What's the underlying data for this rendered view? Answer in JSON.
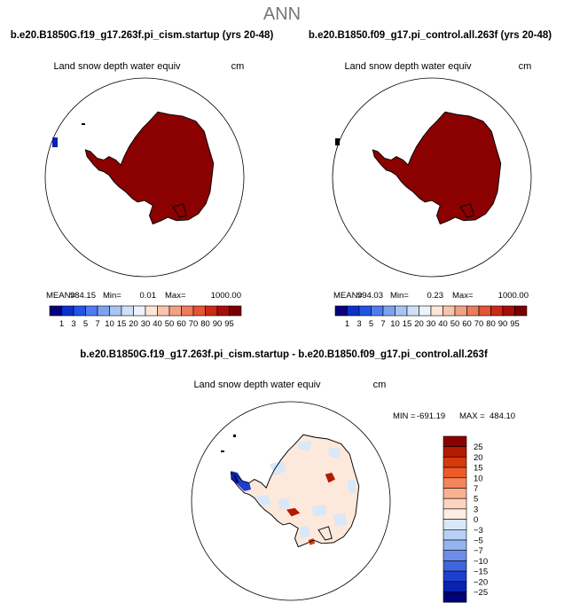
{
  "figure": {
    "title": "ANN"
  },
  "chart_data": [
    {
      "type": "heatmap",
      "id": "panel_case",
      "title": "b.e20.B1850G.f19_g17.263f.pi_cism.startup (yrs 20-48)",
      "variable": "Land snow depth water equiv",
      "units": "cm",
      "stats": {
        "mean_label": "MEAN=",
        "mean": "984.15",
        "min_label": "Min=",
        "min": "0.01",
        "max_label": "Max=",
        "max": "1000.00"
      },
      "colorbar": {
        "orientation": "horizontal",
        "levels": [
          1,
          3,
          5,
          7,
          10,
          15,
          20,
          30,
          40,
          50,
          60,
          70,
          80,
          90,
          95
        ],
        "tick_labels": [
          "1",
          "3",
          "5",
          "7",
          "10",
          "15",
          "20",
          "30",
          "40",
          "50",
          "60",
          "70",
          "80",
          "90",
          "95"
        ],
        "colors": [
          "#08007a",
          "#0a32c8",
          "#2055e6",
          "#4f7cf0",
          "#7ea2f2",
          "#a9c4f4",
          "#cfe0f6",
          "#eef3fb",
          "#fde6d8",
          "#f8c4ac",
          "#f3a183",
          "#ee7b5a",
          "#e55434",
          "#cc2a14",
          "#a50f08",
          "#7a0000"
        ]
      },
      "region": "Antarctica (south polar stereographic)",
      "dominant_value_color": "#8b0000"
    },
    {
      "type": "heatmap",
      "id": "panel_control",
      "title": "b.e20.B1850.f09_g17.pi_control.all.263f (yrs 20-48)",
      "variable": "Land snow depth water equiv",
      "units": "cm",
      "stats": {
        "mean_label": "MEAN=",
        "mean": "994.03",
        "min_label": "Min=",
        "min": "0.23",
        "max_label": "Max=",
        "max": "1000.00"
      },
      "colorbar": {
        "orientation": "horizontal",
        "levels": [
          1,
          3,
          5,
          7,
          10,
          15,
          20,
          30,
          40,
          50,
          60,
          70,
          80,
          90,
          95
        ],
        "tick_labels": [
          "1",
          "3",
          "5",
          "7",
          "10",
          "15",
          "20",
          "30",
          "40",
          "50",
          "60",
          "70",
          "80",
          "90",
          "95"
        ],
        "colors": [
          "#08007a",
          "#0a32c8",
          "#2055e6",
          "#4f7cf0",
          "#7ea2f2",
          "#a9c4f4",
          "#cfe0f6",
          "#eef3fb",
          "#fde6d8",
          "#f8c4ac",
          "#f3a183",
          "#ee7b5a",
          "#e55434",
          "#cc2a14",
          "#a50f08",
          "#7a0000"
        ]
      },
      "region": "Antarctica (south polar stereographic)",
      "dominant_value_color": "#8b0000"
    },
    {
      "type": "heatmap",
      "id": "panel_diff",
      "title": "b.e20.B1850G.f19_g17.263f.pi_cism.startup - b.e20.B1850.f09_g17.pi_control.all.263f",
      "variable": "Land snow depth water equiv",
      "units": "cm",
      "stats": {
        "min_label": "MIN =",
        "min": "-691.19",
        "max_label": "MAX =",
        "max": "484.10"
      },
      "colorbar": {
        "orientation": "vertical",
        "levels": [
          25,
          20,
          15,
          10,
          7,
          5,
          3,
          0,
          -3,
          -5,
          -7,
          -10,
          -15,
          -20,
          -25
        ],
        "tick_labels": [
          "25",
          "20",
          "15",
          "10",
          "7",
          "5",
          "3",
          "0",
          "−3",
          "−5",
          "−7",
          "−10",
          "−15",
          "−20",
          "−25"
        ],
        "colors": [
          "#8b0000",
          "#b31a00",
          "#d63a0c",
          "#ee5b28",
          "#f6855b",
          "#fbb08e",
          "#fdd5be",
          "#fdeee4",
          "#d9e8f8",
          "#b7d0f4",
          "#93b4ef",
          "#6c8ee8",
          "#4066dd",
          "#1d3fcf",
          "#0a22b0",
          "#00007a"
        ]
      },
      "region": "Antarctica (south polar stereographic)",
      "dominant_value_color": "#fde9dc"
    }
  ]
}
